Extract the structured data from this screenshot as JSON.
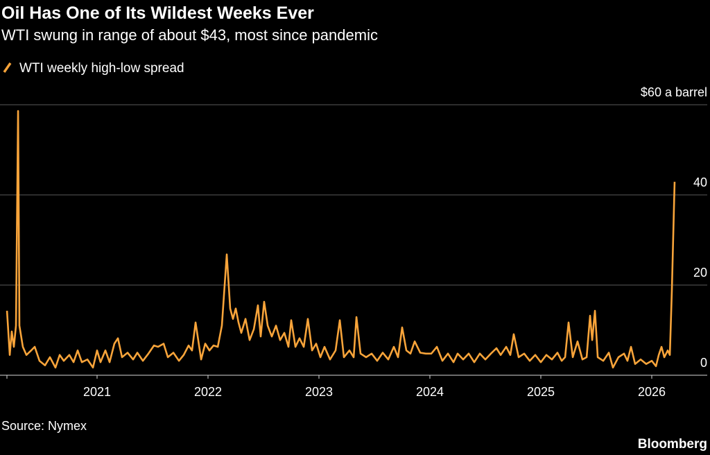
{
  "chart_data": {
    "type": "line",
    "title": "Oil Has One of Its Wildest Weeks Ever",
    "subtitle": "WTI swung in range of about $43, most since pandemic",
    "source": "Source: Nymex",
    "credit": "Bloomberg",
    "x": [
      2020.188,
      2020.213,
      2020.231,
      2020.25,
      2020.269,
      2020.288,
      2020.3,
      2020.331,
      2020.363,
      2020.406,
      2020.438,
      2020.481,
      2020.531,
      2020.575,
      2020.625,
      2020.663,
      2020.7,
      2020.75,
      2020.788,
      2020.825,
      2020.863,
      2020.913,
      2020.963,
      2021,
      2021.031,
      2021.075,
      2021.113,
      2021.156,
      2021.188,
      2021.225,
      2021.275,
      2021.325,
      2021.363,
      2021.413,
      2021.463,
      2021.513,
      2021.55,
      2021.6,
      2021.638,
      2021.688,
      2021.738,
      2021.781,
      2021.825,
      2021.856,
      2021.888,
      2021.938,
      2021.975,
      2022.013,
      2022.05,
      2022.088,
      2022.125,
      2022.169,
      2022.2,
      2022.225,
      2022.25,
      2022.275,
      2022.3,
      2022.338,
      2022.375,
      2022.413,
      2022.45,
      2022.475,
      2022.506,
      2022.538,
      2022.575,
      2022.613,
      2022.65,
      2022.688,
      2022.725,
      2022.75,
      2022.788,
      2022.825,
      2022.863,
      2022.9,
      2022.938,
      2022.975,
      2023.013,
      2023.05,
      2023.1,
      2023.15,
      2023.188,
      2023.225,
      2023.275,
      2023.313,
      2023.338,
      2023.375,
      2023.425,
      2023.475,
      2023.525,
      2023.575,
      2023.625,
      2023.675,
      2023.713,
      2023.75,
      2023.788,
      2023.825,
      2023.863,
      2023.913,
      2023.963,
      2024.013,
      2024.063,
      2024.113,
      2024.163,
      2024.213,
      2024.25,
      2024.3,
      2024.35,
      2024.4,
      2024.45,
      2024.5,
      2024.55,
      2024.6,
      2024.638,
      2024.688,
      2024.725,
      2024.756,
      2024.8,
      2024.85,
      2024.9,
      2024.95,
      2025,
      2025.05,
      2025.1,
      2025.15,
      2025.188,
      2025.219,
      2025.25,
      2025.288,
      2025.331,
      2025.375,
      2025.413,
      2025.444,
      2025.463,
      2025.488,
      2025.513,
      2025.563,
      2025.613,
      2025.65,
      2025.7,
      2025.75,
      2025.781,
      2025.813,
      2025.85,
      2025.9,
      2025.95,
      2026,
      2026.038,
      2026.063,
      2026.088,
      2026.113,
      2026.144,
      2026.163,
      2026.181,
      2026.206
    ],
    "series": [
      {
        "name": "WTI weekly high-low spread",
        "color": "#f8a43a",
        "values": [
          14.3,
          4.5,
          9.7,
          6.3,
          11,
          58.6,
          11,
          6.3,
          4.5,
          5.5,
          6.3,
          3.2,
          2.2,
          4,
          1.7,
          4.5,
          3.2,
          4.5,
          2.9,
          5.5,
          2.9,
          3.5,
          1.7,
          5.5,
          2.9,
          5.5,
          2.9,
          7,
          8.2,
          4,
          5,
          3.5,
          5,
          3.2,
          4.8,
          6.6,
          6.3,
          7,
          4,
          5,
          3.2,
          4.5,
          6.6,
          5.5,
          11.7,
          3.5,
          7,
          5.5,
          6.6,
          6.3,
          11,
          26.8,
          14.8,
          12.5,
          14.8,
          11.7,
          9.4,
          12.5,
          7.8,
          10.2,
          15.5,
          8.6,
          16.3,
          11,
          8.6,
          11,
          7.8,
          9.4,
          6.3,
          12.2,
          6.3,
          8.2,
          6.3,
          12.5,
          5.5,
          7,
          4,
          6.3,
          3.5,
          5.5,
          12.2,
          4,
          5.5,
          4,
          12.9,
          4.8,
          4,
          4.8,
          3.2,
          5,
          3.5,
          6.3,
          4,
          10.6,
          5.5,
          4.8,
          7.5,
          5,
          4.8,
          4.8,
          6.3,
          3.2,
          4.8,
          2.9,
          4.8,
          3.5,
          4.8,
          2.9,
          4.8,
          3.5,
          4.8,
          6,
          4.5,
          6.3,
          4.5,
          9.1,
          4,
          4.8,
          3.2,
          4.5,
          2.9,
          4.5,
          3.5,
          5,
          3.2,
          4,
          11.7,
          4,
          7.5,
          3.5,
          4,
          13.2,
          7.8,
          14.3,
          4,
          3.2,
          5,
          1.7,
          4,
          4.8,
          3.2,
          6.3,
          2.5,
          3.5,
          2.5,
          3.2,
          2,
          4.5,
          6.3,
          4,
          5.5,
          4.5,
          18.6,
          42.9
        ]
      }
    ],
    "xlim": [
      2020.125,
      2026.5
    ],
    "ylim": [
      0,
      60
    ],
    "xticks": [
      2021,
      2022,
      2023,
      2024,
      2025,
      2026
    ],
    "yticks": [
      0,
      20,
      40,
      {
        "value": 60,
        "label": "$60 a barrel"
      }
    ],
    "grid": true
  }
}
